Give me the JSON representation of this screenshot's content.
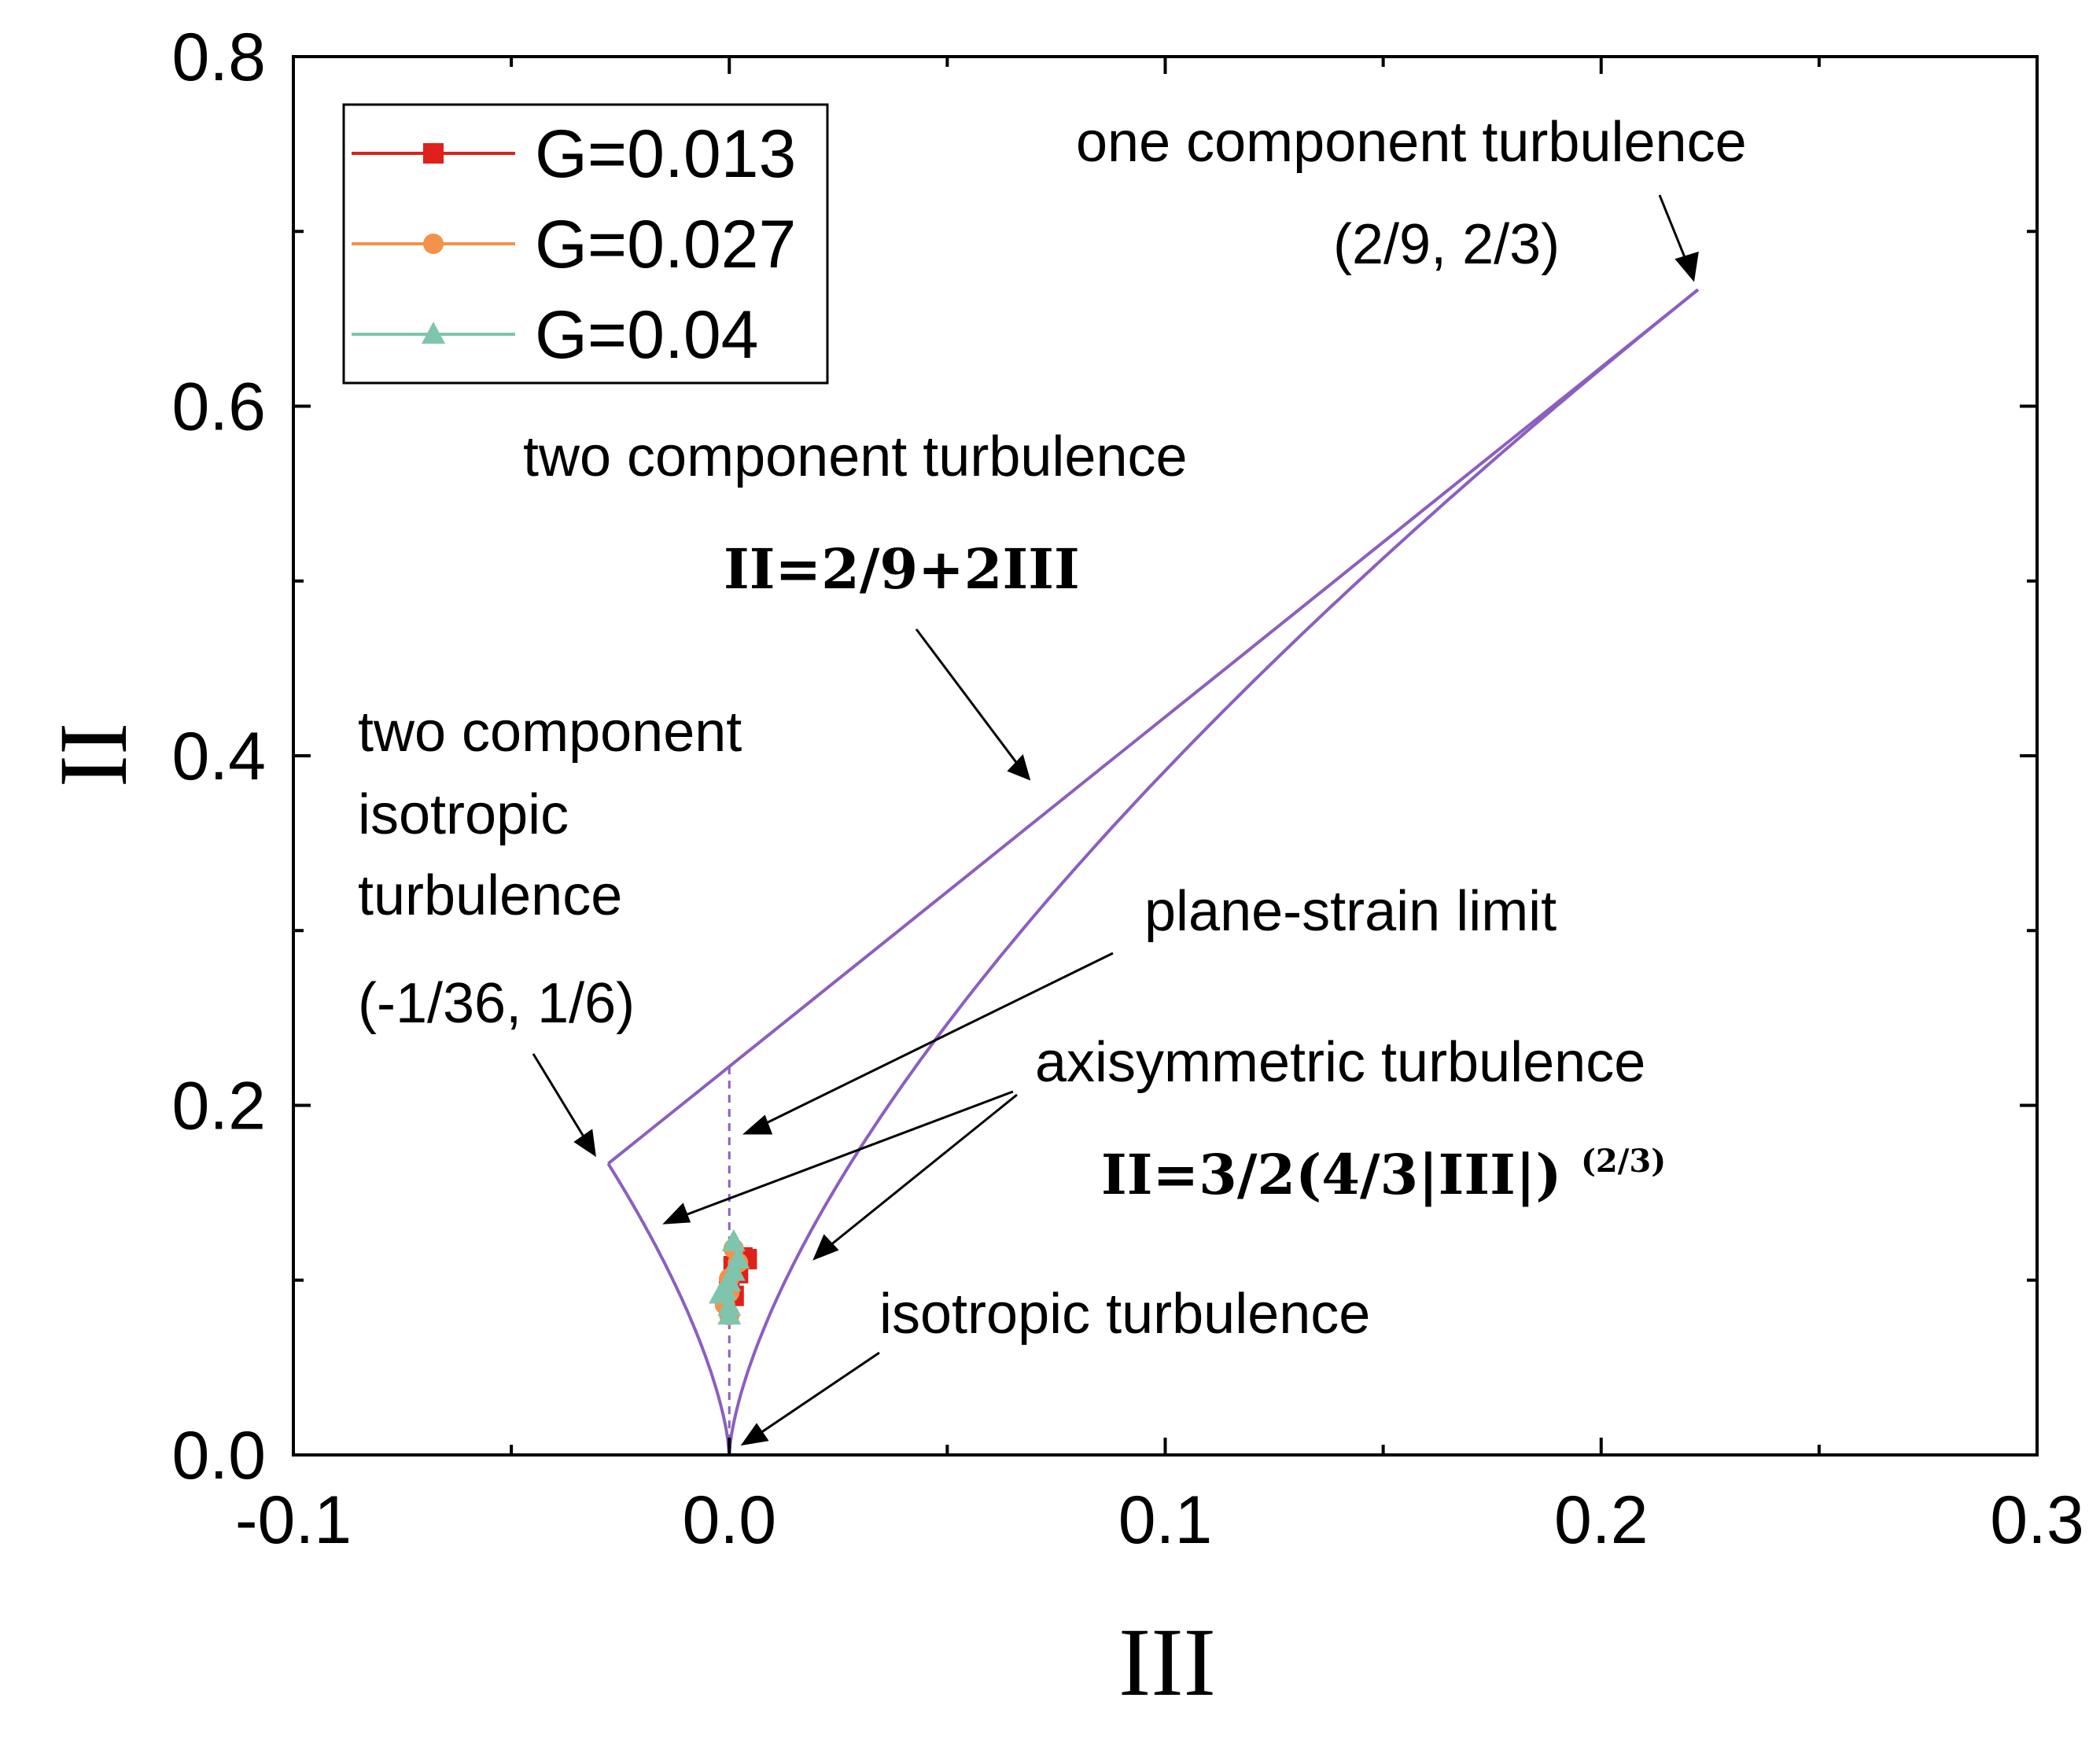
{
  "chart_data": {
    "type": "scatter",
    "xlabel": "III",
    "ylabel": "II",
    "xlim": [
      -0.1,
      0.3
    ],
    "ylim": [
      0,
      0.8
    ],
    "x_ticks": [
      "-0.1",
      "0.0",
      "0.1",
      "0.2",
      "0.3"
    ],
    "y_ticks": [
      "0.0",
      "0.2",
      "0.4",
      "0.6",
      "0.8"
    ],
    "x_tick_values": [
      -0.1,
      0.0,
      0.1,
      0.2,
      0.3
    ],
    "y_tick_values": [
      0.0,
      0.2,
      0.4,
      0.6,
      0.8
    ],
    "grid": false,
    "legend_position": "top-left",
    "boundary_color": "#8b5fbf",
    "series": [
      {
        "name": "G=0.013",
        "color": "#e0201b",
        "marker": "square",
        "points": [
          [
            0.003,
            0.113
          ],
          [
            0.004,
            0.112
          ],
          [
            0.001,
            0.108
          ],
          [
            0.002,
            0.104
          ],
          [
            0.0,
            0.096
          ],
          [
            0.001,
            0.091
          ]
        ]
      },
      {
        "name": "G=0.027",
        "color": "#f2924b",
        "marker": "circle",
        "points": [
          [
            0.001,
            0.118
          ],
          [
            0.002,
            0.11
          ],
          [
            0.0,
            0.101
          ],
          [
            0.0,
            0.093
          ],
          [
            -0.001,
            0.086
          ],
          [
            0.0,
            0.08
          ]
        ]
      },
      {
        "name": "G=0.04",
        "color": "#7fc4ad",
        "marker": "triangle",
        "points": [
          [
            0.001,
            0.122
          ],
          [
            0.002,
            0.112
          ],
          [
            0.001,
            0.105
          ],
          [
            0.0,
            0.099
          ],
          [
            -0.001,
            0.094
          ],
          [
            -0.002,
            0.092
          ],
          [
            0.0,
            0.085
          ],
          [
            0.0,
            0.08
          ]
        ]
      }
    ],
    "annotations": {
      "one_component": "one component turbulence",
      "one_component_point": "(2/9, 2/3)",
      "two_component": "two component turbulence",
      "two_component_eq": "II=2/9+2III",
      "two_comp_iso_line1": "two component",
      "two_comp_iso_line2": "isotropic",
      "two_comp_iso_line3": "turbulence",
      "two_comp_iso_point": "(-1/36, 1/6)",
      "plane_strain": "plane-strain limit",
      "axisymmetric": "axisymmetric turbulence",
      "axisymmetric_eq": "II=3/2(4/3|III|)",
      "axisymmetric_exp": "(2/3)",
      "isotropic": "isotropic turbulence"
    }
  }
}
